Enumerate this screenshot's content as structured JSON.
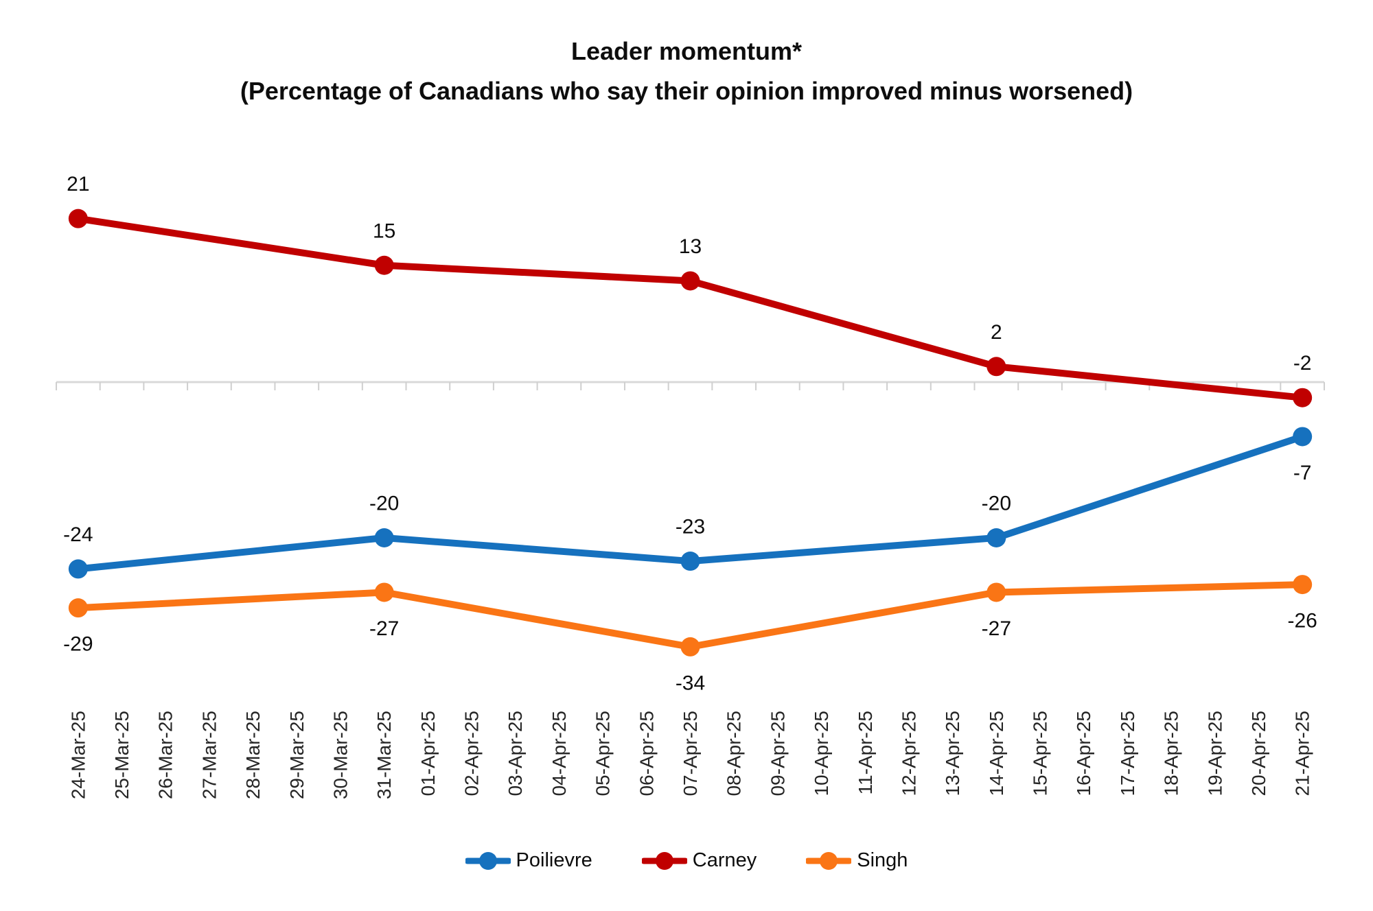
{
  "title": "Leader momentum*",
  "subtitle": "(Percentage of Canadians who say their opinion improved minus worsened)",
  "colors": {
    "poilievre": "#1671BE",
    "carney": "#C00000",
    "singh": "#FA7515",
    "axis_line": "#D9D9D9",
    "axis_tick": "#CFCFCF",
    "value_label": "#0d0d0d",
    "x_label": "#262626"
  },
  "chart_data": {
    "type": "line",
    "title": "Leader momentum*",
    "subtitle": "(Percentage of Canadians who say their opinion improved minus worsened)",
    "xlabel": "",
    "ylabel": "",
    "ylim": [
      -40,
      26
    ],
    "zero_gridline": true,
    "legend_position": "bottom",
    "x": [
      "24-Mar-25",
      "25-Mar-25",
      "26-Mar-25",
      "27-Mar-25",
      "28-Mar-25",
      "29-Mar-25",
      "30-Mar-25",
      "31-Mar-25",
      "01-Apr-25",
      "02-Apr-25",
      "03-Apr-25",
      "04-Apr-25",
      "05-Apr-25",
      "06-Apr-25",
      "07-Apr-25",
      "08-Apr-25",
      "09-Apr-25",
      "10-Apr-25",
      "11-Apr-25",
      "12-Apr-25",
      "13-Apr-25",
      "14-Apr-25",
      "15-Apr-25",
      "16-Apr-25",
      "17-Apr-25",
      "18-Apr-25",
      "19-Apr-25",
      "20-Apr-25",
      "21-Apr-25"
    ],
    "series": [
      {
        "name": "Poilievre",
        "color": "#1671BE",
        "points": [
          {
            "date": "24-Mar-25",
            "value": -24,
            "label": "-24",
            "label_pos": "above"
          },
          {
            "date": "31-Mar-25",
            "value": -20,
            "label": "-20",
            "label_pos": "above"
          },
          {
            "date": "07-Apr-25",
            "value": -23,
            "label": "-23",
            "label_pos": "above"
          },
          {
            "date": "14-Apr-25",
            "value": -20,
            "label": "-20",
            "label_pos": "above"
          },
          {
            "date": "21-Apr-25",
            "value": -7,
            "label": "-7",
            "label_pos": "below"
          }
        ]
      },
      {
        "name": "Carney",
        "color": "#C00000",
        "points": [
          {
            "date": "24-Mar-25",
            "value": 21,
            "label": "21",
            "label_pos": "above"
          },
          {
            "date": "31-Mar-25",
            "value": 15,
            "label": "15",
            "label_pos": "above"
          },
          {
            "date": "07-Apr-25",
            "value": 13,
            "label": "13",
            "label_pos": "above"
          },
          {
            "date": "14-Apr-25",
            "value": 2,
            "label": "2",
            "label_pos": "above"
          },
          {
            "date": "21-Apr-25",
            "value": -2,
            "label": "-2",
            "label_pos": "above"
          }
        ]
      },
      {
        "name": "Singh",
        "color": "#FA7515",
        "points": [
          {
            "date": "24-Mar-25",
            "value": -29,
            "label": "-29",
            "label_pos": "below"
          },
          {
            "date": "31-Mar-25",
            "value": -27,
            "label": "-27",
            "label_pos": "below"
          },
          {
            "date": "07-Apr-25",
            "value": -34,
            "label": "-34",
            "label_pos": "below"
          },
          {
            "date": "14-Apr-25",
            "value": -27,
            "label": "-27",
            "label_pos": "below"
          },
          {
            "date": "21-Apr-25",
            "value": -26,
            "label": "-26",
            "label_pos": "below"
          }
        ]
      }
    ]
  },
  "legend": {
    "items": [
      {
        "label": "Poilievre",
        "color_key": "poilievre"
      },
      {
        "label": "Carney",
        "color_key": "carney"
      },
      {
        "label": "Singh",
        "color_key": "singh"
      }
    ]
  }
}
